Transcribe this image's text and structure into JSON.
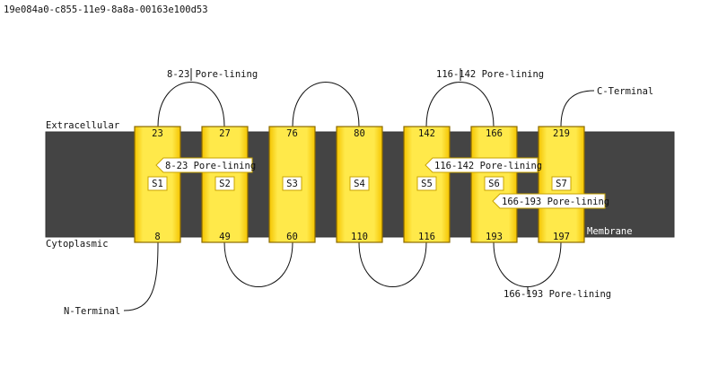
{
  "header": {
    "id_text": "19e084a0-c855-11e9-8a8a-00163e100d53"
  },
  "regions": {
    "extracellular": "Extracellular",
    "cytoplasmic": "Cytoplasmic",
    "membrane": "Membrane"
  },
  "colors": {
    "membrane": "#444444",
    "helix_fill": "#ffe94a",
    "helix_edge": "#e8b800"
  },
  "helices": [
    {
      "label": "S1",
      "top": "23",
      "bottom": "8"
    },
    {
      "label": "S2",
      "top": "27",
      "bottom": "49"
    },
    {
      "label": "S3",
      "top": "76",
      "bottom": "60"
    },
    {
      "label": "S4",
      "top": "80",
      "bottom": "110"
    },
    {
      "label": "S5",
      "top": "142",
      "bottom": "116"
    },
    {
      "label": "S6",
      "top": "166",
      "bottom": "193"
    },
    {
      "label": "S7",
      "top": "219",
      "bottom": "197"
    }
  ],
  "annotations": {
    "n_terminal": "N-Terminal",
    "c_terminal": "C-Terminal",
    "loop_8_23": "8-23 Pore-lining",
    "loop_116_142": "116-142 Pore-lining",
    "loop_166_193": "166-193 Pore-lining"
  },
  "callouts": [
    {
      "text": "8-23 Pore-lining"
    },
    {
      "text": "116-142 Pore-lining"
    },
    {
      "text": "166-193 Pore-lining"
    }
  ]
}
